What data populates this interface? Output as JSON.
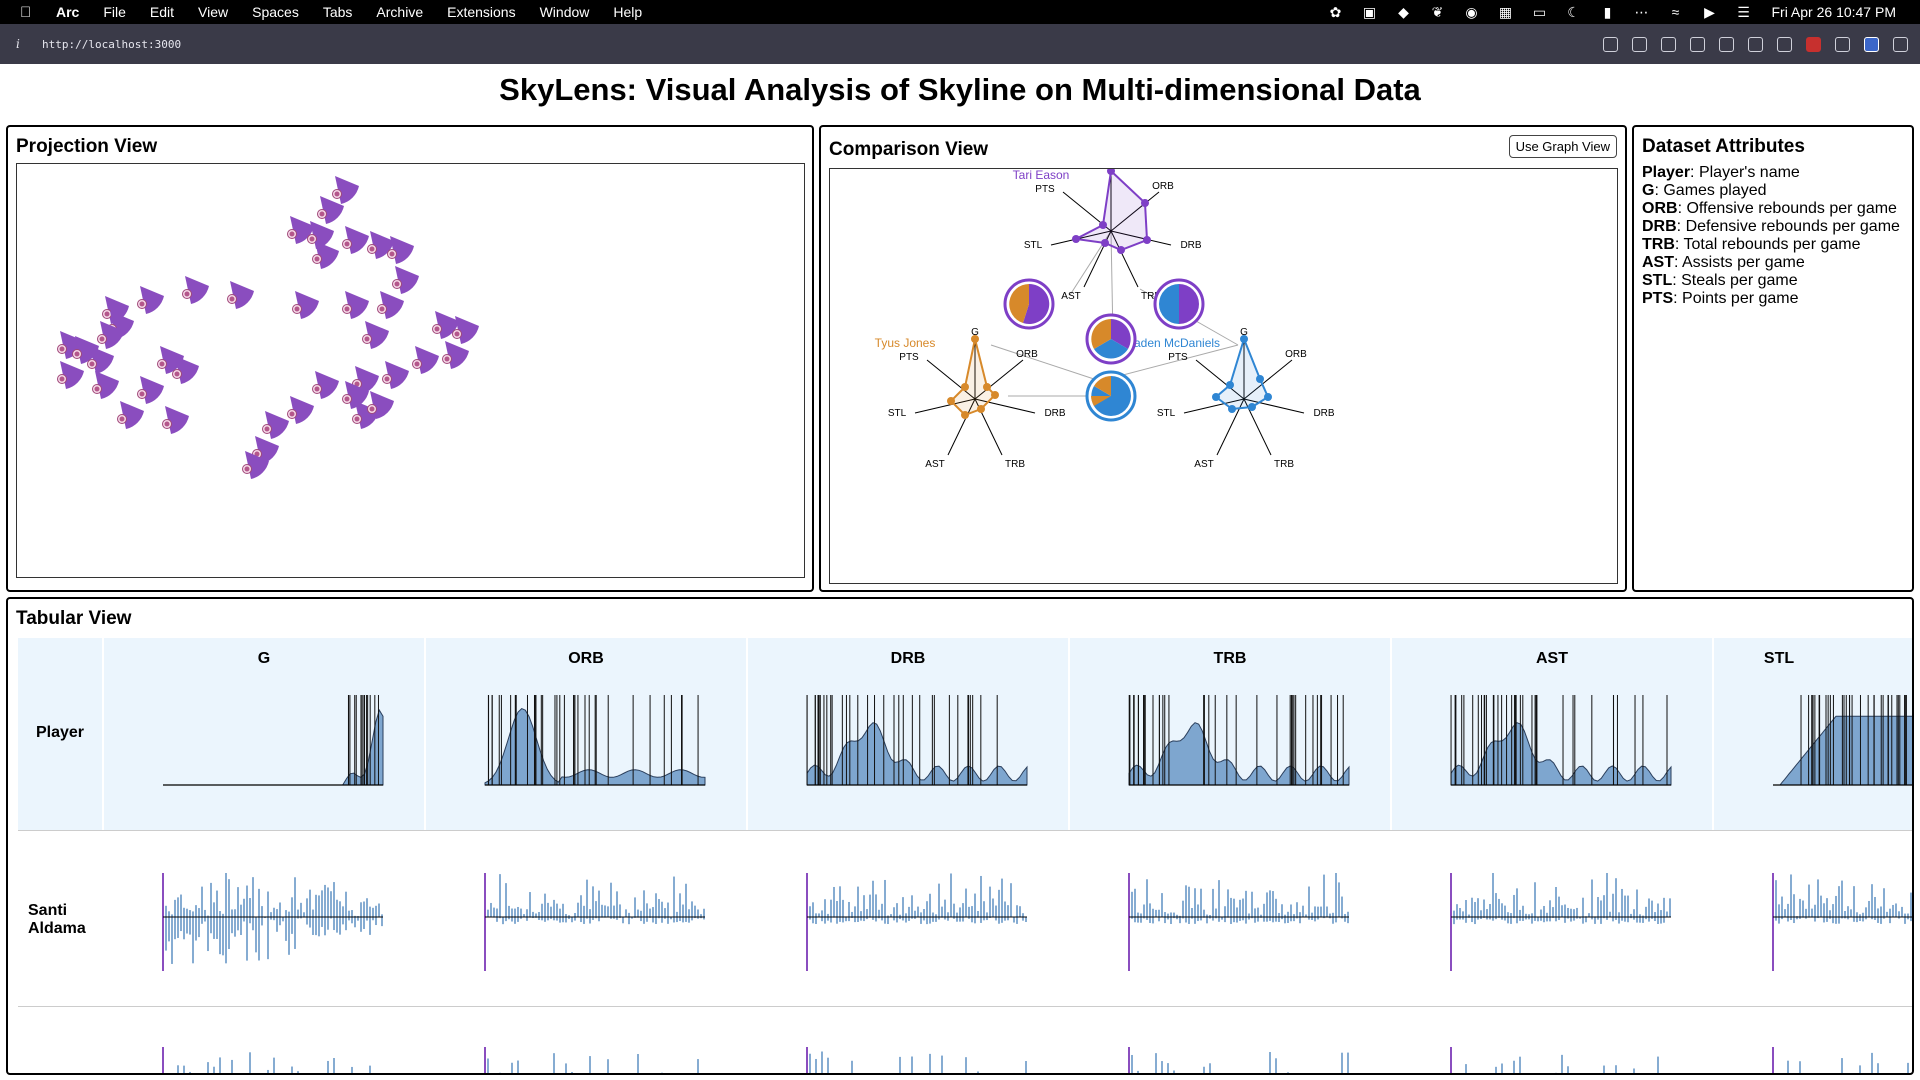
{
  "menubar": {
    "app": "Arc",
    "items": [
      "File",
      "Edit",
      "View",
      "Spaces",
      "Tabs",
      "Archive",
      "Extensions",
      "Window",
      "Help"
    ],
    "status_icons": [
      "paw-icon",
      "a-icon",
      "diamond-icon",
      "feather-icon",
      "grammarly-icon",
      "keyboard-icon",
      "display-icon",
      "moon-icon",
      "battery-icon",
      "dots-icon",
      "wifi-icon",
      "play-icon",
      "control-center-icon"
    ],
    "clock": "Fri Apr 26  10:47 PM"
  },
  "browser": {
    "url": "http://localhost:3000",
    "toolbar_icons": [
      "link-icon",
      "capture-icon",
      "camera-icon",
      "terminal-icon",
      "globe-icon",
      "crosshair-icon",
      "extension-icon",
      "ublock-icon",
      "script-icon",
      "shield-icon",
      "sidebar-icon"
    ]
  },
  "page": {
    "title": "SkyLens: Visual Analysis of Skyline on Multi-dimensional Data"
  },
  "projection": {
    "title": "Projection View"
  },
  "comparison": {
    "title": "Comparison View",
    "button": "Use Graph View",
    "axes": [
      "G",
      "ORB",
      "DRB",
      "TRB",
      "AST",
      "STL",
      "PTS"
    ],
    "players": [
      {
        "name": "Tari Eason",
        "color": "#7e3fc6"
      },
      {
        "name": "Tyus Jones",
        "color": "#d7892a"
      },
      {
        "name": "Jaden McDaniels",
        "color": "#2f86d3"
      }
    ]
  },
  "attributes": {
    "title": "Dataset Attributes",
    "items": [
      {
        "key": "Player",
        "desc": ": Player's name"
      },
      {
        "key": "G",
        "desc": ": Games played"
      },
      {
        "key": "ORB",
        "desc": ": Offensive rebounds per game"
      },
      {
        "key": "DRB",
        "desc": ": Defensive rebounds per game"
      },
      {
        "key": "TRB",
        "desc": ": Total rebounds per game"
      },
      {
        "key": "AST",
        "desc": ": Assists per game"
      },
      {
        "key": "STL",
        "desc": ": Steals per game"
      },
      {
        "key": "PTS",
        "desc": ": Points per game"
      }
    ]
  },
  "tabular": {
    "title": "Tabular View",
    "player_header": "Player",
    "columns": [
      "G",
      "ORB",
      "DRB",
      "TRB",
      "AST",
      "STL"
    ],
    "rows": [
      "Santi Aldama"
    ]
  }
}
